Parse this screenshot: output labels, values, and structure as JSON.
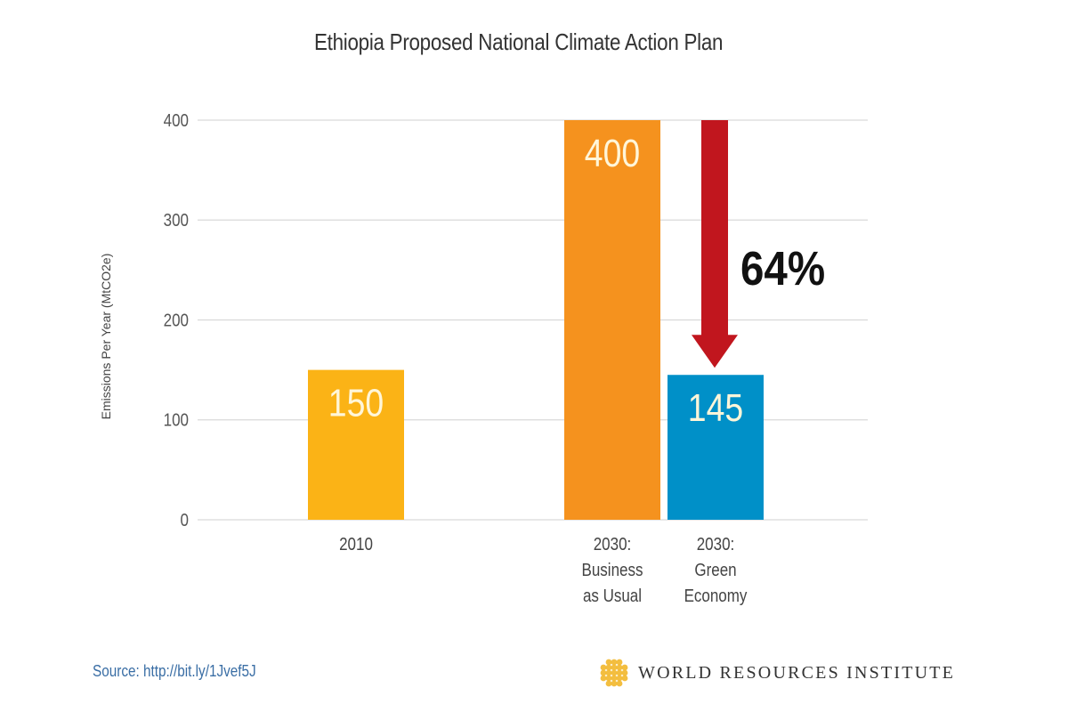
{
  "chart_data": {
    "type": "bar",
    "title": "Ethiopia Proposed National Climate Action Plan",
    "xlabel": "",
    "ylabel": "Emissions Per Year (MtCO2e)",
    "ylim": [
      0,
      400
    ],
    "yticks": [
      0,
      100,
      200,
      300,
      400
    ],
    "ytick_labels": [
      "0",
      "100",
      "200",
      "300",
      "400"
    ],
    "grid": true,
    "categories": [
      [
        "2010"
      ],
      [
        "2030:",
        "Business",
        "as Usual"
      ],
      [
        "2030:",
        "Green",
        "Economy"
      ]
    ],
    "values": [
      150,
      400,
      145
    ],
    "data_labels": [
      "150",
      "400",
      "145"
    ],
    "colors": [
      "#fbb316",
      "#f5921e",
      "#0090c8"
    ],
    "annotation": {
      "type": "arrow",
      "from_value": 400,
      "to_value": 145,
      "label": "64%",
      "color": "#c1161e"
    }
  },
  "footer": {
    "source": "Source: http://bit.ly/1Jvef5J",
    "logo_text": "WORLD RESOURCES INSTITUTE",
    "logo_color": "#f2b72b"
  }
}
